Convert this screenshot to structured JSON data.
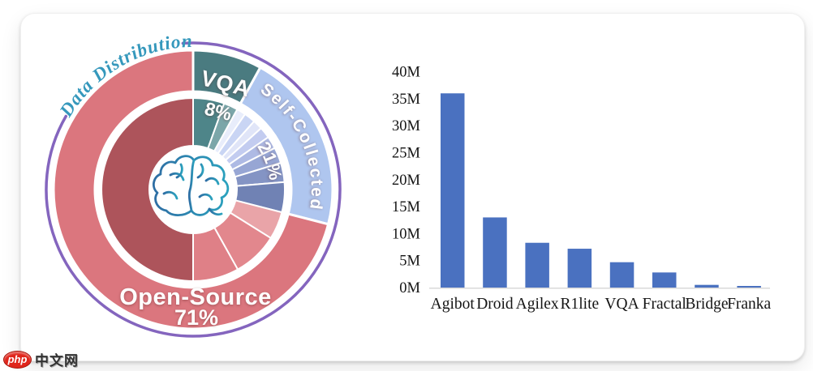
{
  "watermark": {
    "badge": "php",
    "site": "中文网",
    "badge_color": "#e0251b"
  },
  "chart_data": [
    {
      "type": "pie",
      "title": "Data Distribution",
      "title_color": "#3598BC",
      "ring_color": "#8465BE",
      "icon": "brain-icon",
      "icon_colors": [
        "#2E6EA4",
        "#2BA2BE"
      ],
      "legend_position": "on-segments",
      "rings": {
        "outer": [
          {
            "label": "VQA",
            "pct": 8,
            "color": "#4A7B80"
          },
          {
            "label": "Self-Collected",
            "pct": 21,
            "color": "#AFC6EF"
          },
          {
            "label": "Open-Source",
            "pct": 71,
            "color": "#DB767E"
          }
        ],
        "inner": [
          {
            "group": "VQA",
            "pct": 5.5,
            "color": "#4E8589"
          },
          {
            "group": "VQA",
            "pct": 2.5,
            "color": "#7BA6A9"
          },
          {
            "group": "Self-Collected",
            "pct": 1.6,
            "color": "#E8EDFB"
          },
          {
            "group": "Self-Collected",
            "pct": 2.0,
            "color": "#C9D5F4"
          },
          {
            "group": "Self-Collected",
            "pct": 1.7,
            "color": "#E0E5F8"
          },
          {
            "group": "Self-Collected",
            "pct": 2.0,
            "color": "#C3CCF0"
          },
          {
            "group": "Self-Collected",
            "pct": 2.2,
            "color": "#AEBAE4"
          },
          {
            "group": "Self-Collected",
            "pct": 2.8,
            "color": "#97A6D4"
          },
          {
            "group": "Self-Collected",
            "pct": 3.4,
            "color": "#8494C4"
          },
          {
            "group": "Self-Collected",
            "pct": 5.3,
            "color": "#7082B4"
          },
          {
            "group": "Open-Source",
            "pct": 4.9,
            "color": "#E9A4A8"
          },
          {
            "group": "Open-Source",
            "pct": 8.0,
            "color": "#E2878D"
          },
          {
            "group": "Open-Source",
            "pct": 8.1,
            "color": "#DF8087"
          },
          {
            "group": "Open-Source",
            "pct": 50.0,
            "color": "#AD545B"
          }
        ]
      },
      "labels": {
        "vqa": "VQA",
        "vqa_pct": "8%",
        "self_collected": "Self-Collected",
        "self_collected_pct": "21%",
        "open_source": "Open-Source",
        "open_source_pct": "71%"
      }
    },
    {
      "type": "bar",
      "categories": [
        "Agibot",
        "Droid",
        "Agilex",
        "R1lite",
        "VQA",
        "Fractal",
        "Bridge",
        "Franka"
      ],
      "values": [
        36,
        13,
        8.3,
        7.2,
        4.7,
        2.8,
        0.5,
        0.3
      ],
      "unit": "M",
      "ylim": [
        0,
        40
      ],
      "y_ticks": [
        "0M",
        "5M",
        "10M",
        "15M",
        "20M",
        "25M",
        "30M",
        "35M",
        "40M"
      ],
      "bar_color": "#4A71C0",
      "axis_line_color": "#D9D9D9",
      "label_color": "#141414",
      "grid": false,
      "xlabel": "",
      "ylabel": ""
    }
  ]
}
